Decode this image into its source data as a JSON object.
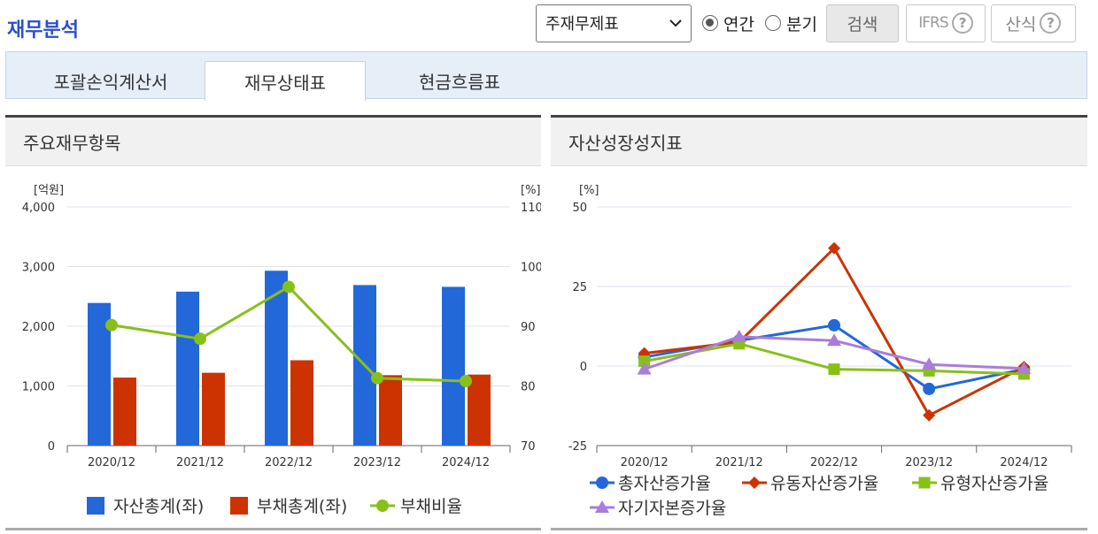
{
  "page_title": "재무분석",
  "controls": {
    "select_value": "주재무제표",
    "radio_annual": "연간",
    "radio_quarter": "분기",
    "search_label": "검색",
    "ifrs_label": "IFRS",
    "formula_label": "산식",
    "help_glyph": "?"
  },
  "tabs": [
    {
      "label": "포괄손익계산서",
      "active": false
    },
    {
      "label": "재무상태표",
      "active": true
    },
    {
      "label": "현금흐름표",
      "active": false
    }
  ],
  "panels": {
    "left_title": "주요재무항목",
    "right_title": "자산성장성지표"
  },
  "chart_data": [
    {
      "type": "bar",
      "categories": [
        "2020/12",
        "2021/12",
        "2022/12",
        "2023/12",
        "2024/12"
      ],
      "y_left_unit": "[억원]",
      "y_right_unit": "[%]",
      "ylim_left": [
        0,
        4000
      ],
      "y_left_ticks": [
        "0",
        "1,000",
        "2,000",
        "3,000",
        "4,000"
      ],
      "ylim_right": [
        70,
        110
      ],
      "y_right_ticks": [
        "70",
        "80",
        "90",
        "100",
        "110"
      ],
      "grid": true,
      "legend_position": "bottom",
      "series": [
        {
          "name": "자산총계(좌)",
          "kind": "bar",
          "axis": "left",
          "color": "#2368d8",
          "values": [
            2390,
            2580,
            2930,
            2690,
            2660
          ]
        },
        {
          "name": "부채총계(좌)",
          "kind": "bar",
          "axis": "left",
          "color": "#cc3300",
          "values": [
            1140,
            1220,
            1430,
            1180,
            1190
          ]
        },
        {
          "name": "부채비율",
          "kind": "line",
          "axis": "right",
          "color": "#88c01a",
          "values": [
            90.2,
            87.9,
            96.6,
            81.3,
            80.8
          ]
        }
      ]
    },
    {
      "type": "line",
      "categories": [
        "2020/12",
        "2021/12",
        "2022/12",
        "2023/12",
        "2024/12"
      ],
      "y_unit": "[%]",
      "ylim": [
        -25,
        50
      ],
      "y_ticks": [
        "-25",
        "0",
        "25",
        "50"
      ],
      "grid": true,
      "legend_position": "bottom",
      "series": [
        {
          "name": "총자산증가율",
          "marker": "circle",
          "color": "#2368d8",
          "values": [
            2.8,
            8.0,
            12.8,
            -7.2,
            -1.0
          ]
        },
        {
          "name": "유동자산증가율",
          "marker": "diamond",
          "color": "#cc3300",
          "values": [
            4.0,
            7.5,
            37.0,
            -15.5,
            -0.3
          ]
        },
        {
          "name": "유형자산증가율",
          "marker": "square",
          "color": "#88c01a",
          "values": [
            1.5,
            7.0,
            -1.0,
            -1.5,
            -2.5
          ]
        },
        {
          "name": "자기자본증가율",
          "marker": "triangle",
          "color": "#a87ed8",
          "values": [
            -1.0,
            9.2,
            8.0,
            0.5,
            -0.8
          ]
        }
      ]
    }
  ]
}
